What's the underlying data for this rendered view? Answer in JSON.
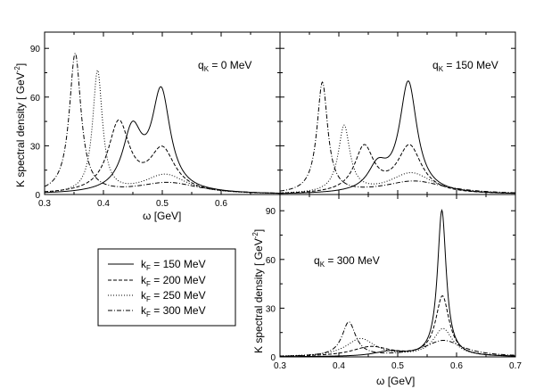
{
  "chart_data": [
    {
      "type": "line",
      "panel": "top-left",
      "annotation": "q",
      "annotation_sub": "K",
      "annotation_rest": " = 0 MeV",
      "xlabel": "ω [GeV]",
      "ylabel": "K spectral density [ GeV",
      "ylabel_sup": "-2",
      "ylabel_close": "]",
      "xlim": [
        0.3,
        0.7
      ],
      "ylim": [
        0,
        100
      ],
      "xticks": [
        "0.3",
        "0.4",
        "0.5",
        "0.6"
      ],
      "yticks": [
        "0",
        "30",
        "60",
        "90"
      ],
      "series": [
        {
          "name": "kF = 150 MeV",
          "peaks": [
            [
              0.449,
              37,
              0.02
            ],
            [
              0.498,
              61,
              0.019
            ],
            [
              0.58,
              0.2,
              0.05
            ]
          ]
        },
        {
          "name": "kF = 200 MeV",
          "peaks": [
            [
              0.426,
              43,
              0.022
            ],
            [
              0.5,
              26,
              0.026
            ],
            [
              0.54,
              0.4,
              0.06
            ]
          ]
        },
        {
          "name": "kF = 250 MeV",
          "peaks": [
            [
              0.39,
              75,
              0.01
            ],
            [
              0.505,
              12,
              0.045
            ]
          ]
        },
        {
          "name": "kF = 300 MeV",
          "peaks": [
            [
              0.352,
              86,
              0.012
            ],
            [
              0.51,
              7,
              0.065
            ]
          ]
        }
      ]
    },
    {
      "type": "line",
      "panel": "top-right",
      "annotation": "q",
      "annotation_sub": "K",
      "annotation_rest": " = 150 MeV",
      "xlim": [
        0.3,
        0.7
      ],
      "ylim": [
        0,
        100
      ],
      "series": [
        {
          "name": "kF = 150 MeV",
          "peaks": [
            [
              0.466,
              15,
              0.02
            ],
            [
              0.518,
              68,
              0.018
            ]
          ]
        },
        {
          "name": "kF = 200 MeV",
          "peaks": [
            [
              0.443,
              28,
              0.02
            ],
            [
              0.52,
              29,
              0.025
            ]
          ]
        },
        {
          "name": "kF = 250 MeV",
          "peaks": [
            [
              0.409,
              41,
              0.012
            ],
            [
              0.523,
              13,
              0.045
            ]
          ]
        },
        {
          "name": "kF = 300 MeV",
          "peaks": [
            [
              0.372,
              68,
              0.011
            ],
            [
              0.528,
              8,
              0.065
            ]
          ]
        }
      ]
    },
    {
      "type": "line",
      "panel": "bottom-right",
      "annotation": "q",
      "annotation_sub": "K",
      "annotation_rest": " = 300 MeV",
      "xlabel": "ω [GeV]",
      "ylabel": "K spectral density [ GeV",
      "ylabel_sup": "-2",
      "ylabel_close": "]",
      "xlim": [
        0.3,
        0.7
      ],
      "ylim": [
        0,
        100
      ],
      "xticks": [
        "0.3",
        "0.4",
        "0.5",
        "0.6",
        "0.7"
      ],
      "yticks": [
        "0",
        "30",
        "60",
        "90"
      ],
      "series": [
        {
          "name": "kF = 150 MeV",
          "peaks": [
            [
              0.485,
              3,
              0.03
            ],
            [
              0.575,
              90,
              0.009
            ]
          ]
        },
        {
          "name": "kF = 200 MeV",
          "peaks": [
            [
              0.455,
              6,
              0.04
            ],
            [
              0.576,
              37,
              0.014
            ]
          ]
        },
        {
          "name": "kF = 250 MeV",
          "peaks": [
            [
              0.437,
              11,
              0.03
            ],
            [
              0.577,
              17,
              0.02
            ]
          ]
        },
        {
          "name": "kF = 300 MeV",
          "peaks": [
            [
              0.417,
              21,
              0.014
            ],
            [
              0.578,
              10,
              0.04
            ]
          ]
        }
      ]
    }
  ],
  "legend": {
    "entries": [
      {
        "k": "k",
        "sub": "F",
        "rest": " = 150 MeV"
      },
      {
        "k": "k",
        "sub": "F",
        "rest": " = 200 MeV"
      },
      {
        "k": "k",
        "sub": "F",
        "rest": " = 250 MeV"
      },
      {
        "k": "k",
        "sub": "F",
        "rest": " = 300 MeV"
      }
    ]
  },
  "colors": {
    "line": "#000000",
    "axis": "#000000",
    "background": "#ffffff"
  }
}
